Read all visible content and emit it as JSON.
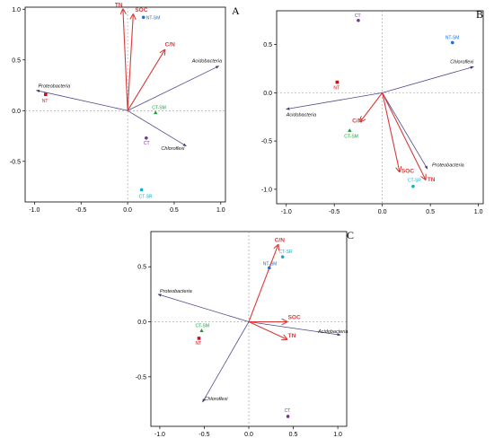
{
  "chart_data": [
    {
      "type": "scatter",
      "subtype": "rda-biplot",
      "panel_label": "A",
      "title": "",
      "xlabel": "",
      "ylabel": "",
      "xlim": [
        -1.1,
        1.05
      ],
      "ylim": [
        -0.9,
        1.02
      ],
      "x_ticks": [
        -1.0,
        -0.5,
        0.0,
        0.5,
        1.0
      ],
      "y_ticks": [
        -0.5,
        0.0,
        0.5,
        1.0
      ],
      "x_tick_labels": [
        "-1.0",
        "-0.5",
        "0.0",
        "0.5",
        "1.0"
      ],
      "y_tick_labels": [
        "-0.5",
        "0.0",
        "0.5",
        "1.0"
      ],
      "grid": false,
      "reference_lines": [
        0,
        0
      ],
      "environmental_arrows": [
        {
          "label": "TN",
          "x": -0.05,
          "y": 1.0
        },
        {
          "label": "SOC",
          "x": 0.06,
          "y": 0.95
        },
        {
          "label": "C/N",
          "x": 0.4,
          "y": 0.6
        }
      ],
      "species_arrows": [
        {
          "label": "Acidobacteria",
          "x": 0.98,
          "y": 0.44
        },
        {
          "label": "Proteobacteria",
          "x": -0.98,
          "y": 0.2
        },
        {
          "label": "Chloroflexi",
          "x": 0.63,
          "y": -0.35
        }
      ],
      "sites": [
        {
          "label": "NT-SM",
          "x": 0.17,
          "y": 0.92,
          "color": "#1e6fd9"
        },
        {
          "label": "NT",
          "x": -0.88,
          "y": 0.16,
          "color": "#c0161f"
        },
        {
          "label": "CT-SM",
          "x": 0.3,
          "y": -0.02,
          "color": "#1a9a3a"
        },
        {
          "label": "CT",
          "x": 0.2,
          "y": -0.27,
          "color": "#7a2d9c"
        },
        {
          "label": "CT-SR",
          "x": 0.15,
          "y": -0.78,
          "color": "#19a8d1"
        }
      ]
    },
    {
      "type": "scatter",
      "subtype": "rda-biplot",
      "panel_label": "B",
      "title": "",
      "xlabel": "",
      "ylabel": "",
      "xlim": [
        -1.1,
        1.05
      ],
      "ylim": [
        -1.15,
        0.85
      ],
      "x_ticks": [
        -1.0,
        -0.5,
        0.0,
        0.5,
        1.0
      ],
      "y_ticks": [
        -1.0,
        -0.5,
        0.0,
        0.5
      ],
      "x_tick_labels": [
        "-1.0",
        "-0.5",
        "0.0",
        "0.5",
        "1.0"
      ],
      "y_tick_labels": [
        "-1.0",
        "-0.5",
        "0.0",
        "0.5"
      ],
      "grid": false,
      "reference_lines": [
        0,
        0
      ],
      "environmental_arrows": [
        {
          "label": "C/N",
          "x": -0.23,
          "y": -0.3
        },
        {
          "label": "SOC",
          "x": 0.18,
          "y": -0.82
        },
        {
          "label": "TN",
          "x": 0.45,
          "y": -0.9
        }
      ],
      "species_arrows": [
        {
          "label": "Chloroflexi",
          "x": 0.95,
          "y": 0.27
        },
        {
          "label": "Acidobacteria",
          "x": -1.0,
          "y": -0.17
        },
        {
          "label": "Proteobacteria",
          "x": 0.47,
          "y": -0.79
        }
      ],
      "sites": [
        {
          "label": "CT",
          "x": -0.25,
          "y": 0.75,
          "color": "#7a2d9c"
        },
        {
          "label": "NT-SM",
          "x": 0.73,
          "y": 0.52,
          "color": "#1e6fd9"
        },
        {
          "label": "NT",
          "x": -0.47,
          "y": 0.11,
          "color": "#c0161f"
        },
        {
          "label": "CT-SM",
          "x": -0.34,
          "y": -0.39,
          "color": "#1a9a3a"
        },
        {
          "label": "CT-SR",
          "x": 0.32,
          "y": -0.97,
          "color": "#19a8d1"
        }
      ]
    },
    {
      "type": "scatter",
      "subtype": "rda-biplot",
      "panel_label": "C",
      "title": "",
      "xlabel": "",
      "ylabel": "",
      "xlim": [
        -1.1,
        1.1
      ],
      "ylim": [
        -0.95,
        0.82
      ],
      "x_ticks": [
        -1.0,
        -0.5,
        0.0,
        0.5,
        1.0
      ],
      "y_ticks": [
        -0.5,
        0.0,
        0.5
      ],
      "x_tick_labels": [
        "-1.0",
        "-0.5",
        "0.0",
        "0.5",
        "1.0"
      ],
      "y_tick_labels": [
        "-0.5",
        "0.0",
        "0.5"
      ],
      "grid": false,
      "reference_lines": [
        0,
        0
      ],
      "environmental_arrows": [
        {
          "label": "C/N",
          "x": 0.33,
          "y": 0.7
        },
        {
          "label": "SOC",
          "x": 0.43,
          "y": 0.0
        },
        {
          "label": "TN",
          "x": 0.43,
          "y": -0.16
        }
      ],
      "species_arrows": [
        {
          "label": "Proteobacteria",
          "x": -1.02,
          "y": 0.25
        },
        {
          "label": "Acidobacteria",
          "x": 1.03,
          "y": -0.12
        },
        {
          "label": "Chloroflexi",
          "x": -0.52,
          "y": -0.73
        }
      ],
      "sites": [
        {
          "label": "CT-SR",
          "x": 0.38,
          "y": 0.59,
          "color": "#19a8d1"
        },
        {
          "label": "NT-SM",
          "x": 0.23,
          "y": 0.49,
          "color": "#1e6fd9"
        },
        {
          "label": "CT-SM",
          "x": -0.53,
          "y": -0.08,
          "color": "#1a9a3a"
        },
        {
          "label": "NT",
          "x": -0.56,
          "y": -0.15,
          "color": "#c0161f"
        },
        {
          "label": "CT",
          "x": 0.44,
          "y": -0.86,
          "color": "#7a2d9c"
        }
      ]
    }
  ],
  "colors": {
    "environmental_arrow": "#d93a3a",
    "species_arrow": "#4a4a8c",
    "axes": "#000000"
  }
}
